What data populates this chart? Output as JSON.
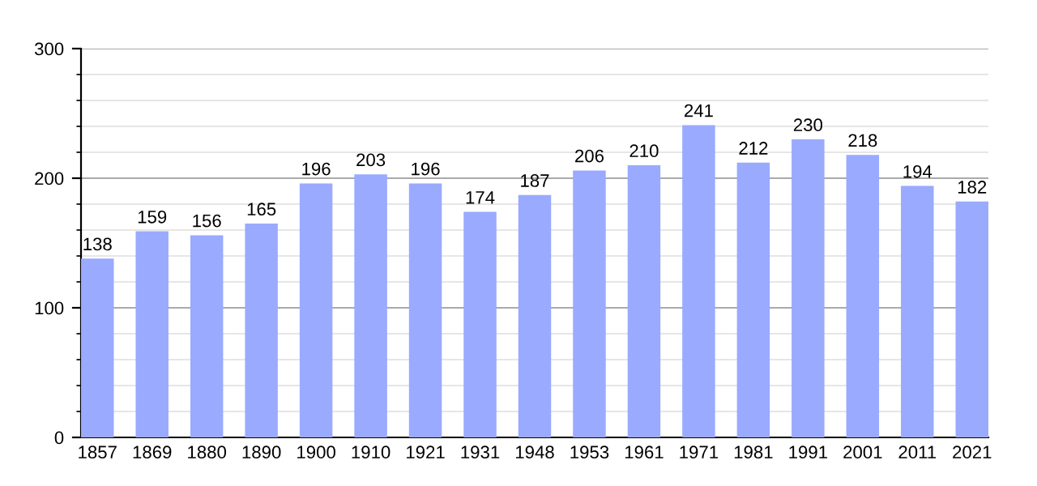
{
  "chart_data": {
    "type": "bar",
    "categories": [
      "1857",
      "1869",
      "1880",
      "1890",
      "1900",
      "1910",
      "1921",
      "1931",
      "1948",
      "1953",
      "1961",
      "1971",
      "1981",
      "1991",
      "2001",
      "2011",
      "2021"
    ],
    "values": [
      138,
      159,
      156,
      165,
      196,
      203,
      196,
      174,
      187,
      206,
      210,
      241,
      212,
      230,
      218,
      194,
      182
    ],
    "color": "#99aaff",
    "ylim": [
      0,
      300
    ],
    "yticks": [
      0,
      100,
      200,
      300
    ],
    "grid": "y",
    "data_labels": true
  }
}
